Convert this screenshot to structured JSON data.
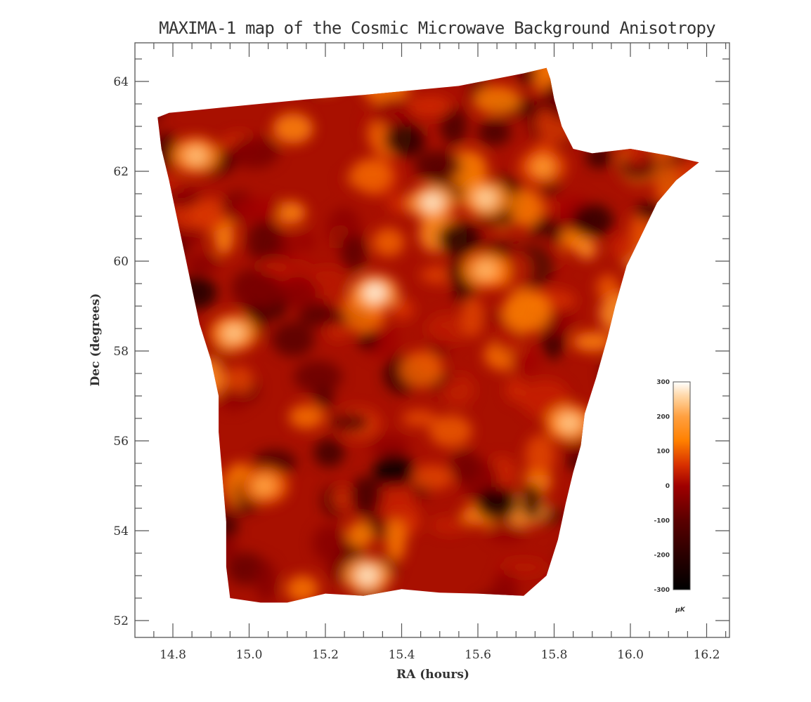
{
  "chart_data": {
    "type": "heatmap",
    "title": "MAXIMA-1 map of the Cosmic Microwave Background Anisotropy",
    "xlabel": "RA (hours)",
    "ylabel": "Dec (degrees)",
    "xlim": [
      14.7,
      16.25
    ],
    "ylim": [
      51.62,
      64.84
    ],
    "x_ticks": [
      "14.8",
      "15.0",
      "15.2",
      "15.4",
      "15.6",
      "15.8",
      "16.0",
      "16.2"
    ],
    "y_ticks": [
      "52",
      "54",
      "56",
      "58",
      "60",
      "62",
      "64"
    ],
    "x_minor_step": 0.05,
    "y_minor_step": 0.5,
    "grid": false,
    "colorbar": {
      "label": "µK",
      "range": [
        -300,
        300
      ],
      "ticks": [
        "300",
        "200",
        "100",
        "0",
        "-100",
        "-200",
        "-300"
      ],
      "colormap": "hot",
      "stops": [
        {
          "value": -300,
          "color": "#000000"
        },
        {
          "value": -200,
          "color": "#2a0000"
        },
        {
          "value": -100,
          "color": "#5a0000"
        },
        {
          "value": 0,
          "color": "#a00000"
        },
        {
          "value": 60,
          "color": "#d83000"
        },
        {
          "value": 130,
          "color": "#ff8000"
        },
        {
          "value": 200,
          "color": "#ffa040"
        },
        {
          "value": 260,
          "color": "#ffd8a8"
        },
        {
          "value": 300,
          "color": "#ffffff"
        }
      ]
    },
    "map_outline_radec": [
      [
        14.76,
        63.2
      ],
      [
        14.79,
        63.3
      ],
      [
        14.93,
        63.42
      ],
      [
        15.15,
        63.6
      ],
      [
        15.3,
        63.7
      ],
      [
        15.55,
        63.9
      ],
      [
        15.72,
        64.18
      ],
      [
        15.78,
        64.3
      ],
      [
        15.79,
        64.05
      ],
      [
        15.8,
        63.6
      ],
      [
        15.82,
        63.0
      ],
      [
        15.85,
        62.5
      ],
      [
        15.9,
        62.4
      ],
      [
        16.0,
        62.5
      ],
      [
        16.1,
        62.35
      ],
      [
        16.18,
        62.2
      ],
      [
        16.12,
        61.8
      ],
      [
        16.07,
        61.3
      ],
      [
        16.03,
        60.6
      ],
      [
        15.99,
        59.9
      ],
      [
        15.96,
        59.0
      ],
      [
        15.94,
        58.3
      ],
      [
        15.91,
        57.4
      ],
      [
        15.88,
        56.6
      ],
      [
        15.87,
        55.9
      ],
      [
        15.85,
        55.3
      ],
      [
        15.83,
        54.6
      ],
      [
        15.81,
        53.8
      ],
      [
        15.78,
        53.0
      ],
      [
        15.72,
        52.55
      ],
      [
        15.6,
        52.6
      ],
      [
        15.5,
        52.62
      ],
      [
        15.4,
        52.7
      ],
      [
        15.3,
        52.55
      ],
      [
        15.2,
        52.6
      ],
      [
        15.1,
        52.4
      ],
      [
        15.03,
        52.4
      ],
      [
        14.95,
        52.5
      ],
      [
        14.94,
        53.2
      ],
      [
        14.94,
        54.2
      ],
      [
        14.93,
        55.2
      ],
      [
        14.92,
        56.2
      ],
      [
        14.92,
        57.0
      ],
      [
        14.9,
        57.8
      ],
      [
        14.87,
        58.6
      ],
      [
        14.85,
        59.4
      ],
      [
        14.83,
        60.2
      ],
      [
        14.81,
        61.0
      ],
      [
        14.79,
        61.8
      ],
      [
        14.77,
        62.5
      ],
      [
        14.76,
        63.2
      ]
    ],
    "hot_spots_radec": [
      {
        "ra": 14.86,
        "dec": 62.35,
        "uk": 230
      },
      {
        "ra": 15.48,
        "dec": 61.3,
        "uk": 270
      },
      {
        "ra": 15.62,
        "dec": 61.4,
        "uk": 250
      },
      {
        "ra": 15.33,
        "dec": 59.3,
        "uk": 280
      },
      {
        "ra": 15.62,
        "dec": 59.8,
        "uk": 220
      },
      {
        "ra": 14.96,
        "dec": 58.4,
        "uk": 240
      },
      {
        "ra": 15.84,
        "dec": 56.4,
        "uk": 240
      },
      {
        "ra": 15.31,
        "dec": 53.0,
        "uk": 270
      },
      {
        "ra": 15.04,
        "dec": 55.0,
        "uk": 200
      },
      {
        "ra": 15.77,
        "dec": 62.1,
        "uk": 180
      }
    ],
    "cold_spots_radec": [
      {
        "ra": 15.38,
        "dec": 55.35,
        "uk": -260
      },
      {
        "ra": 15.65,
        "dec": 54.6,
        "uk": -240
      },
      {
        "ra": 15.41,
        "dec": 62.7,
        "uk": -200
      },
      {
        "ra": 14.86,
        "dec": 59.3,
        "uk": -220
      },
      {
        "ra": 15.55,
        "dec": 60.5,
        "uk": -200
      },
      {
        "ra": 15.9,
        "dec": 60.9,
        "uk": -180
      }
    ]
  }
}
